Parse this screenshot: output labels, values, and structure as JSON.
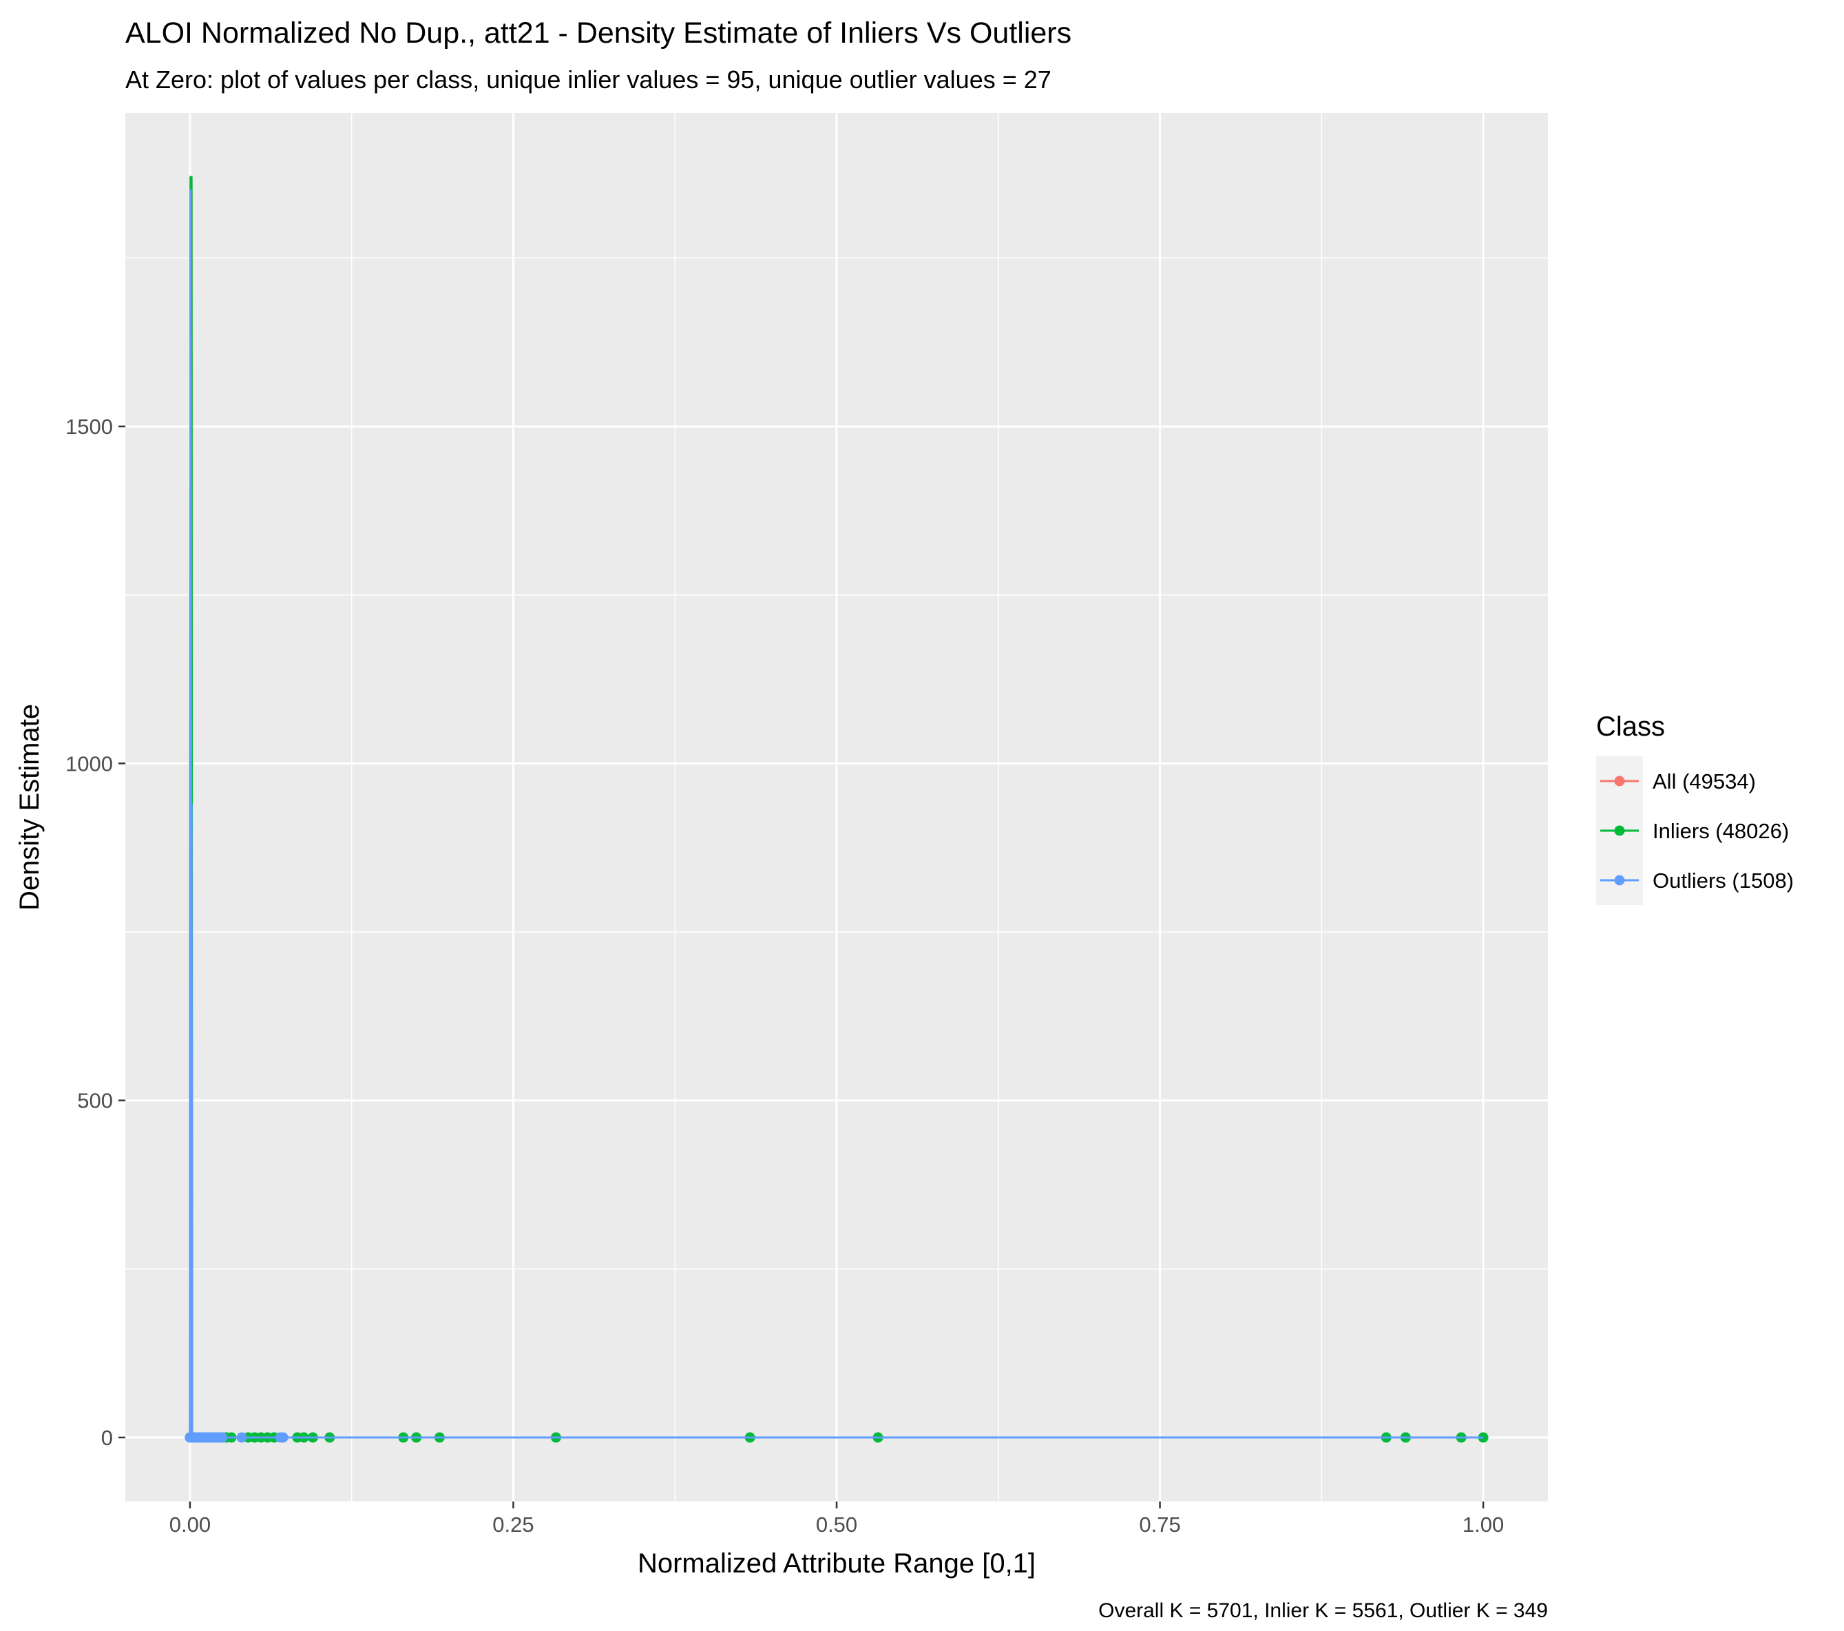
{
  "chart_data": {
    "type": "line",
    "title": "ALOI Normalized No Dup., att21 - Density Estimate of Inliers Vs Outliers",
    "subtitle": "At Zero: plot of values per class, unique inlier values = 95, unique outlier values = 27",
    "xlabel": "Normalized Attribute Range [0,1]",
    "ylabel": "Density Estimate",
    "caption": "Overall K = 5701, Inlier K = 5561, Outlier K = 349",
    "xlim": [
      -0.05,
      1.05
    ],
    "ylim": [
      -95,
      1965
    ],
    "x_ticks": [
      0,
      0.25,
      0.5,
      0.75,
      1.0
    ],
    "x_tick_labels": [
      "0.00",
      "0.25",
      "0.50",
      "0.75",
      "1.00"
    ],
    "y_ticks": [
      0,
      500,
      1000,
      1500
    ],
    "y_tick_labels": [
      "0",
      "500",
      "1000",
      "1500"
    ],
    "grid": true,
    "legend": {
      "title": "Class",
      "placement": "right",
      "entries": [
        "All (49534)",
        "Inliers (48026)",
        "Outliers (1508)"
      ]
    },
    "colors": {
      "all": "#F8766D",
      "inliers": "#00BA38",
      "outliers": "#619CFF",
      "panel": "#EBEBEB",
      "grid": "#FFFFFF"
    },
    "series": [
      {
        "name": "All (49534)",
        "key": "all",
        "line": [
          [
            0,
            0
          ],
          [
            0.0004,
            1850
          ],
          [
            0.0012,
            1850
          ],
          [
            0.0016,
            0
          ],
          [
            1.0,
            0
          ]
        ],
        "points": []
      },
      {
        "name": "Inliers (48026)",
        "key": "inliers",
        "line": [
          [
            0,
            0
          ],
          [
            0.0004,
            1870
          ],
          [
            0.0012,
            1870
          ],
          [
            0.0016,
            0
          ],
          [
            1.0,
            0
          ]
        ],
        "points": [
          0,
          0.003,
          0.006,
          0.009,
          0.012,
          0.016,
          0.02,
          0.024,
          0.028,
          0.032,
          0.045,
          0.05,
          0.055,
          0.06,
          0.065,
          0.083,
          0.088,
          0.095,
          0.108,
          0.165,
          0.175,
          0.193,
          0.283,
          0.433,
          0.532,
          0.925,
          0.94,
          0.983,
          1.0
        ]
      },
      {
        "name": "Outliers (1508)",
        "key": "outliers",
        "line": [
          [
            0,
            0
          ],
          [
            0.0004,
            1850
          ],
          [
            0.0008,
            940
          ],
          [
            0.0012,
            940
          ],
          [
            0.0016,
            0
          ],
          [
            1.0,
            0
          ]
        ],
        "points": [
          0,
          0.002,
          0.004,
          0.006,
          0.008,
          0.01,
          0.012,
          0.014,
          0.016,
          0.018,
          0.02,
          0.022,
          0.025,
          0.04,
          0.07,
          0.072
        ]
      }
    ]
  }
}
